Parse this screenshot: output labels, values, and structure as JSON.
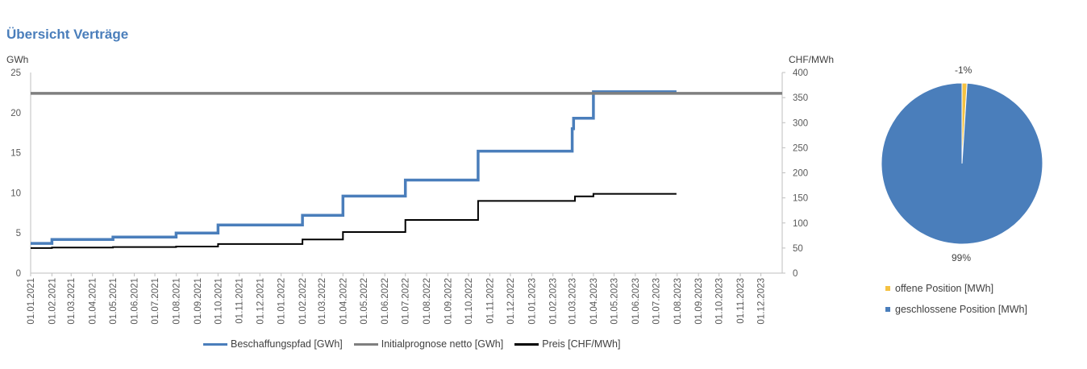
{
  "title": "Übersicht Verträge",
  "chart_data": [
    {
      "type": "line",
      "y_left_label": "GWh",
      "y_right_label": "CHF/MWh",
      "ylim_left": [
        0,
        25
      ],
      "ylim_right": [
        0,
        400
      ],
      "yticks_left": [
        "0",
        "5",
        "10",
        "15",
        "20",
        "25"
      ],
      "yticks_right": [
        "0",
        "50",
        "100",
        "150",
        "200",
        "250",
        "300",
        "350",
        "400"
      ],
      "x_ticks": [
        "01.01.2021",
        "01.02.2021",
        "01.03.2021",
        "01.04.2021",
        "01.05.2021",
        "01.06.2021",
        "01.07.2021",
        "01.08.2021",
        "01.09.2021",
        "01.10.2021",
        "01.11.2021",
        "01.12.2021",
        "01.01.2022",
        "01.02.2022",
        "01.03.2022",
        "01.04.2022",
        "01.05.2022",
        "01.06.2022",
        "01.07.2022",
        "01.08.2022",
        "01.09.2022",
        "01.10.2022",
        "01.11.2022",
        "01.12.2022",
        "01.01.2023",
        "01.02.2023",
        "01.03.2023",
        "01.04.2023",
        "01.05.2023",
        "01.06.2023",
        "01.07.2023",
        "01.08.2023",
        "01.09.2023",
        "01.10.2023",
        "01.11.2023",
        "01.12.2023"
      ],
      "xlim": [
        "2021-01-01",
        "2024-01-01"
      ],
      "series": [
        {
          "name": "Beschaffungspfad [GWh]",
          "axis": "left",
          "color": "#4a7ebb",
          "step": true,
          "x": [
            "2021-01-01",
            "2021-02-01",
            "2021-05-01",
            "2021-08-01",
            "2021-10-01",
            "2022-02-01",
            "2022-04-01",
            "2022-07-01",
            "2022-10-15",
            "2023-03-01",
            "2023-03-03",
            "2023-04-01",
            "2023-07-31"
          ],
          "y": [
            3.7,
            4.2,
            4.5,
            5.0,
            6.0,
            7.2,
            9.6,
            11.6,
            15.2,
            18.0,
            19.3,
            22.6,
            22.6
          ]
        },
        {
          "name": "Initialprognose netto [GWh]",
          "axis": "left",
          "color": "#7f7f7f",
          "x": [
            "2021-01-01",
            "2024-01-01"
          ],
          "y": [
            22.4,
            22.4
          ]
        },
        {
          "name": "Preis [CHF/MWh]",
          "axis": "right",
          "color": "#000000",
          "step": true,
          "x": [
            "2021-01-01",
            "2021-02-01",
            "2021-05-01",
            "2021-08-01",
            "2021-10-01",
            "2022-02-01",
            "2022-04-01",
            "2022-07-01",
            "2022-10-15",
            "2023-03-05",
            "2023-04-01",
            "2023-07-31"
          ],
          "y": [
            50,
            51,
            52,
            53,
            58,
            67,
            82,
            106,
            144,
            153,
            158,
            158
          ]
        }
      ]
    },
    {
      "type": "pie",
      "slices": [
        {
          "label": "offene Position [MWh]",
          "value": -1,
          "display": "-1%",
          "color": "#f5c242"
        },
        {
          "label": "geschlossene Position [MWh]",
          "value": 99,
          "display": "99%",
          "color": "#4a7ebb"
        }
      ]
    }
  ]
}
